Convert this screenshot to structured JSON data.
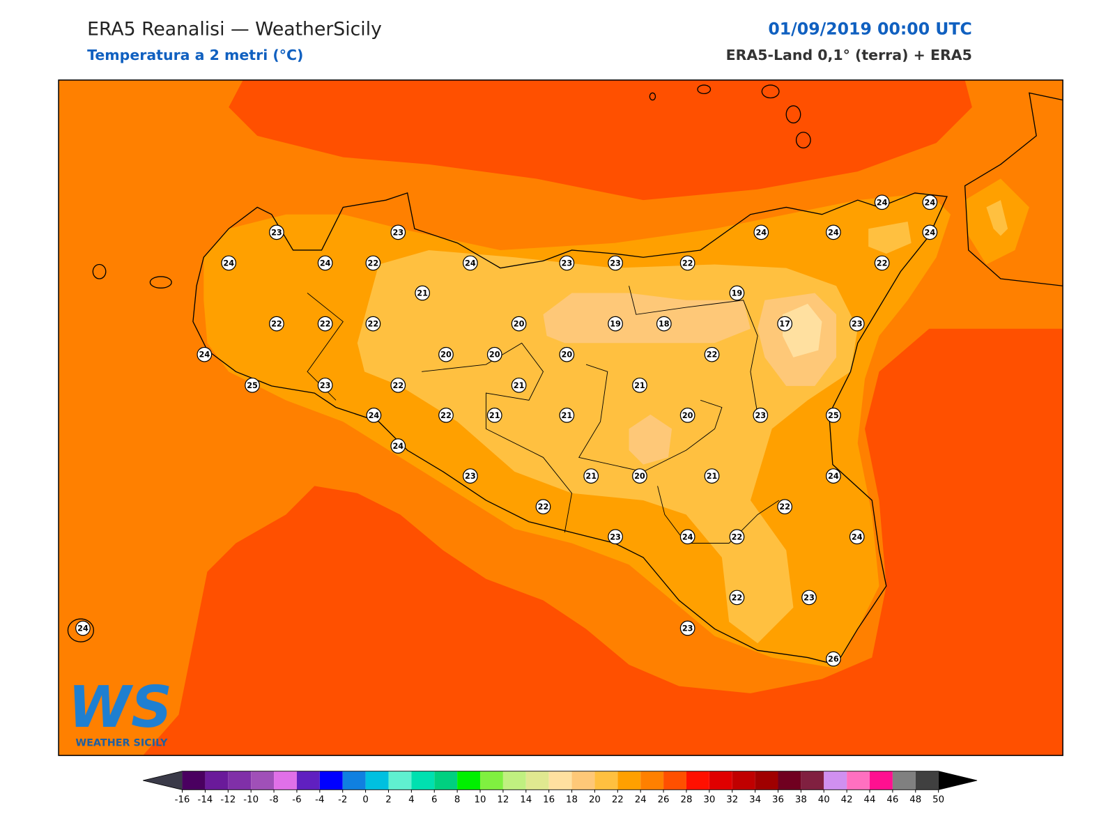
{
  "header": {
    "title": "ERA5 Reanalisi — WeatherSicily",
    "subtitle": "Temperatura a 2 metri (°C)",
    "date": "01/09/2019 00:00 UTC",
    "source": "ERA5-Land 0,1° (terra) + ERA5"
  },
  "stations": [
    23,
    23,
    24,
    24,
    22,
    24,
    23,
    23,
    22,
    24,
    24,
    24,
    24,
    24,
    22,
    21,
    19,
    22,
    22,
    22,
    20,
    19,
    18,
    17,
    23,
    24,
    20,
    20,
    20,
    22,
    25,
    23,
    22,
    21,
    21,
    24,
    22,
    21,
    21,
    20,
    23,
    25,
    24,
    23,
    21,
    20,
    21,
    24,
    22,
    22,
    23,
    24,
    22,
    24,
    22,
    23,
    23,
    24,
    26
  ],
  "logo": {
    "mark": "WS",
    "text": "WEATHER SICILY"
  },
  "colorbar": {
    "ticks": [
      -16,
      -14,
      -12,
      -10,
      -8,
      -6,
      -4,
      -2,
      0,
      2,
      4,
      6,
      8,
      10,
      12,
      14,
      16,
      18,
      20,
      22,
      24,
      26,
      28,
      30,
      32,
      34,
      36,
      38,
      40,
      42,
      44,
      46,
      48,
      50
    ],
    "colors": [
      "#4a0060",
      "#6a1a9a",
      "#8030a8",
      "#a050b8",
      "#e070e8",
      "#6020c0",
      "#0000ff",
      "#1080e0",
      "#00c0e0",
      "#60f0d0",
      "#00e0b0",
      "#00d080",
      "#00f000",
      "#80f040",
      "#c0f080",
      "#e0e890",
      "#ffe0a0",
      "#fec878",
      "#ffc040",
      "#ffa000",
      "#ff8000",
      "#ff5000",
      "#ff1000",
      "#e00000",
      "#c00000",
      "#a00000",
      "#700020",
      "#802040",
      "#d090f0",
      "#ff70c0",
      "#ff1090",
      "#808080",
      "#404040"
    ],
    "under_color": "#3a3a48",
    "over_color": "#000000"
  }
}
